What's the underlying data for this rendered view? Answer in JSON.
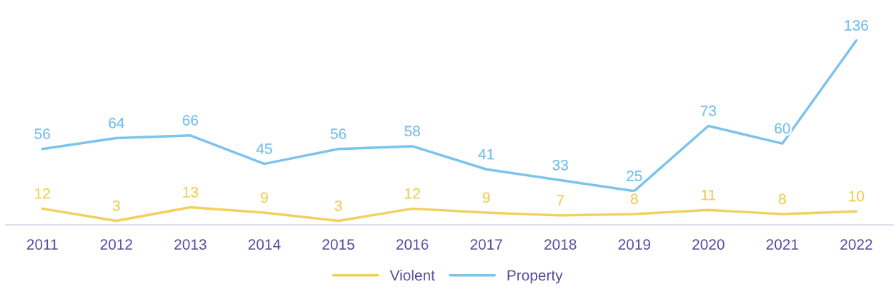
{
  "chart_data": {
    "type": "line",
    "categories": [
      "2011",
      "2012",
      "2013",
      "2014",
      "2015",
      "2016",
      "2017",
      "2018",
      "2019",
      "2020",
      "2021",
      "2022"
    ],
    "series": [
      {
        "name": "Violent",
        "color": "#f2d060",
        "values": [
          12,
          3,
          13,
          9,
          3,
          12,
          9,
          7,
          8,
          11,
          8,
          10
        ]
      },
      {
        "name": "Property",
        "color": "#7dc3ee",
        "values": [
          56,
          64,
          66,
          45,
          56,
          58,
          41,
          33,
          25,
          73,
          60,
          136
        ]
      }
    ],
    "data_labels": true,
    "legend": "bottom",
    "grid": false,
    "marker": "none",
    "line_style": "solid",
    "tick_labels": "x"
  }
}
